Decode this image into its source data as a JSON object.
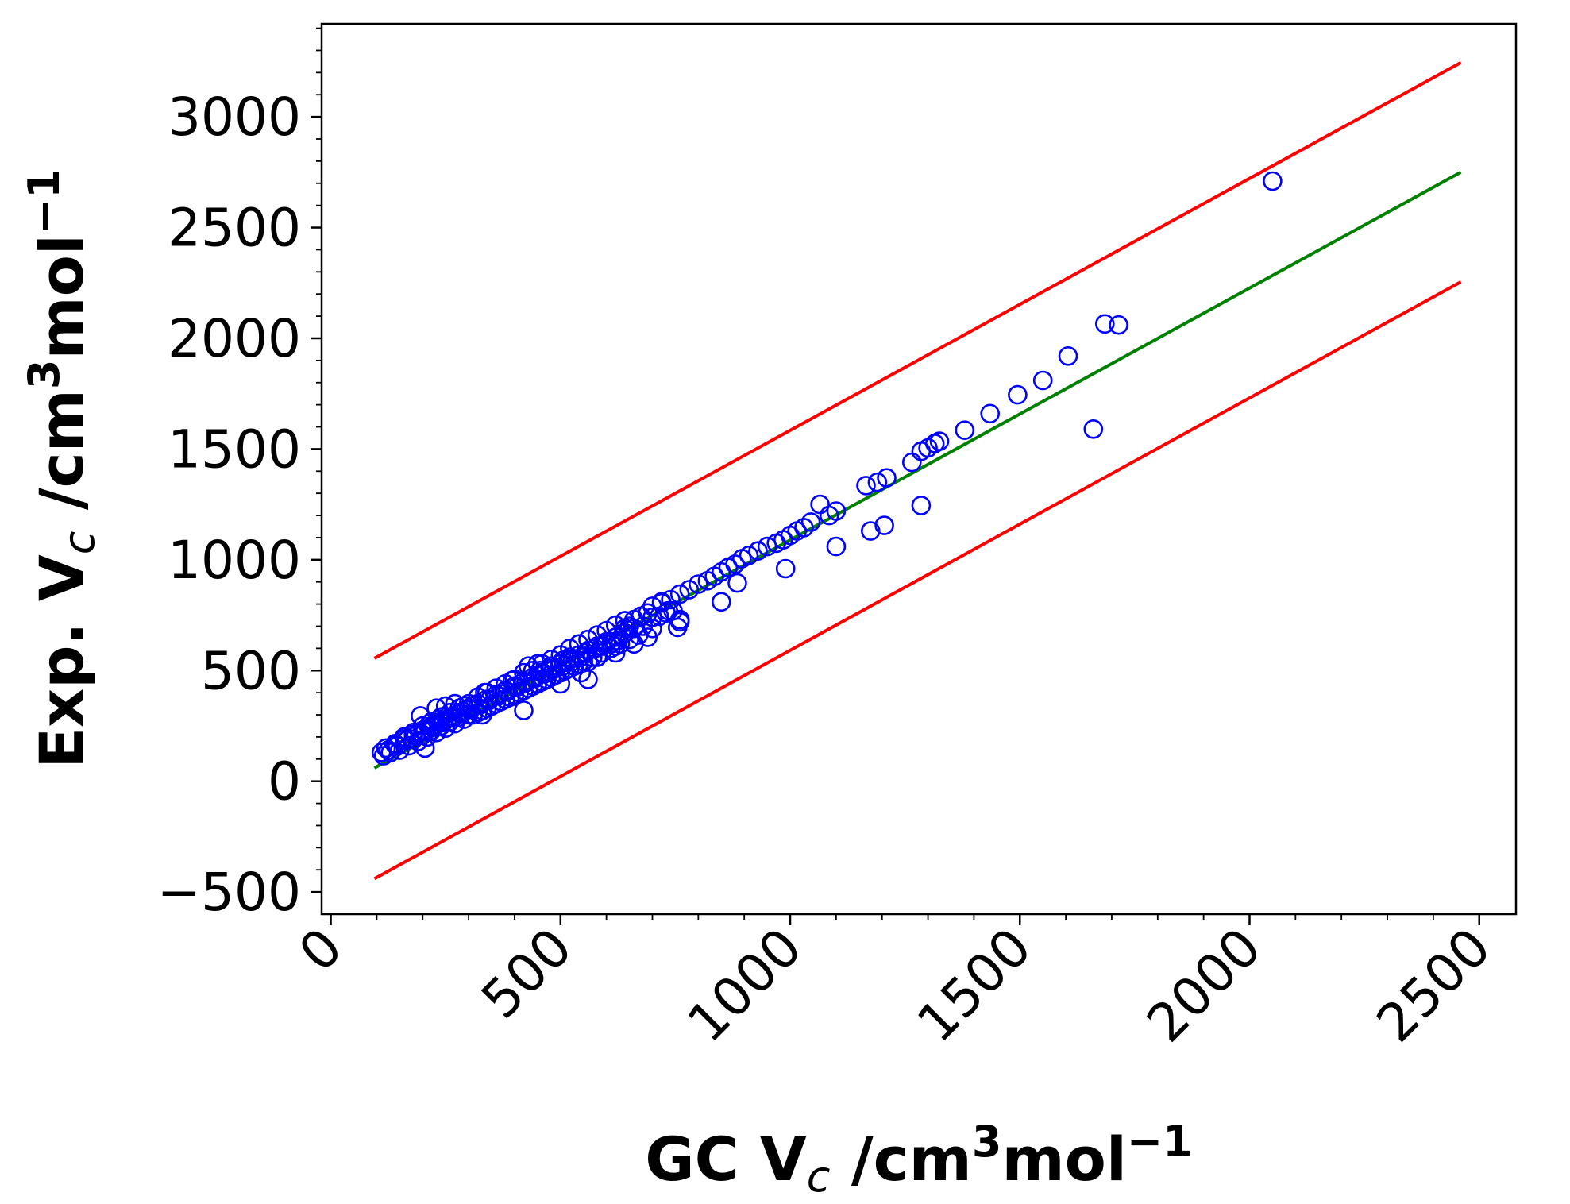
{
  "chart_data": {
    "type": "scatter",
    "xlabel": {
      "main": "GC V",
      "sub": "c",
      "unit_prefix": " /cm",
      "unit_sup": "3",
      "unit_mid": "mol",
      "unit_sup2": "−1"
    },
    "ylabel": {
      "main": "Exp. V",
      "sub": "c",
      "unit_prefix": " /cm",
      "unit_sup": "3",
      "unit_mid": "mol",
      "unit_sup2": "−1"
    },
    "xlim": [
      -20,
      2580
    ],
    "ylim": [
      -600,
      3420
    ],
    "x_ticks": [
      0,
      500,
      1000,
      1500,
      2000,
      2500
    ],
    "x_tick_labels": [
      "0",
      "500",
      "1000",
      "1500",
      "2000",
      "2500"
    ],
    "y_ticks": [
      -500,
      0,
      500,
      1000,
      1500,
      2000,
      2500,
      3000
    ],
    "y_tick_labels": [
      "−500",
      "0",
      "500",
      "1000",
      "1500",
      "2000",
      "2500",
      "3000"
    ],
    "grid": false,
    "colors": {
      "points": "#0000ff",
      "fit_line": "#008000",
      "bound_lines": "#ff0000"
    },
    "lines": [
      {
        "role": "upper-bound",
        "color": "#ff0000",
        "x": [
          95,
          2460
        ],
        "y": [
          555,
          3245
        ]
      },
      {
        "role": "fit",
        "color": "#008000",
        "x": [
          95,
          2460
        ],
        "y": [
          60,
          2750
        ]
      },
      {
        "role": "lower-bound",
        "color": "#ff0000",
        "x": [
          95,
          2460
        ],
        "y": [
          -440,
          2255
        ]
      }
    ],
    "points": [
      [
        2050,
        2710
      ],
      [
        1715,
        2060
      ],
      [
        1685,
        2065
      ],
      [
        1660,
        1590
      ],
      [
        1605,
        1920
      ],
      [
        1550,
        1810
      ],
      [
        1495,
        1745
      ],
      [
        1435,
        1660
      ],
      [
        1380,
        1585
      ],
      [
        1325,
        1535
      ],
      [
        1315,
        1525
      ],
      [
        1300,
        1505
      ],
      [
        1285,
        1490
      ],
      [
        1265,
        1440
      ],
      [
        1285,
        1245
      ],
      [
        1210,
        1370
      ],
      [
        1190,
        1350
      ],
      [
        1165,
        1335
      ],
      [
        1205,
        1155
      ],
      [
        1175,
        1130
      ],
      [
        1100,
        1220
      ],
      [
        1085,
        1200
      ],
      [
        1065,
        1250
      ],
      [
        1045,
        1170
      ],
      [
        1030,
        1145
      ],
      [
        1015,
        1130
      ],
      [
        1100,
        1060
      ],
      [
        1000,
        1110
      ],
      [
        985,
        1090
      ],
      [
        970,
        1075
      ],
      [
        950,
        1060
      ],
      [
        990,
        960
      ],
      [
        930,
        1040
      ],
      [
        910,
        1020
      ],
      [
        895,
        1005
      ],
      [
        880,
        980
      ],
      [
        865,
        965
      ],
      [
        885,
        895
      ],
      [
        850,
        945
      ],
      [
        835,
        925
      ],
      [
        820,
        905
      ],
      [
        850,
        810
      ],
      [
        800,
        890
      ],
      [
        780,
        865
      ],
      [
        760,
        845
      ],
      [
        740,
        820
      ],
      [
        720,
        805
      ],
      [
        760,
        720
      ],
      [
        755,
        695
      ],
      [
        745,
        770
      ],
      [
        730,
        760
      ],
      [
        715,
        745
      ],
      [
        700,
        740
      ],
      [
        690,
        760
      ],
      [
        675,
        745
      ],
      [
        660,
        730
      ],
      [
        640,
        725
      ],
      [
        620,
        705
      ],
      [
        600,
        680
      ],
      [
        580,
        660
      ],
      [
        560,
        640
      ],
      [
        540,
        620
      ],
      [
        520,
        600
      ],
      [
        500,
        570
      ],
      [
        480,
        550
      ],
      [
        460,
        530
      ],
      [
        440,
        500
      ],
      [
        420,
        490
      ],
      [
        400,
        460
      ],
      [
        380,
        440
      ],
      [
        360,
        420
      ],
      [
        340,
        400
      ],
      [
        320,
        380
      ],
      [
        300,
        350
      ],
      [
        280,
        330
      ],
      [
        260,
        310
      ],
      [
        240,
        290
      ],
      [
        220,
        270
      ],
      [
        200,
        250
      ],
      [
        180,
        220
      ],
      [
        160,
        200
      ],
      [
        140,
        170
      ],
      [
        120,
        150
      ],
      [
        110,
        130
      ],
      [
        690,
        650
      ],
      [
        670,
        660
      ],
      [
        650,
        640
      ],
      [
        630,
        620
      ],
      [
        610,
        600
      ],
      [
        590,
        580
      ],
      [
        570,
        560
      ],
      [
        550,
        540
      ],
      [
        530,
        520
      ],
      [
        510,
        500
      ],
      [
        490,
        480
      ],
      [
        470,
        460
      ],
      [
        450,
        440
      ],
      [
        430,
        420
      ],
      [
        410,
        400
      ],
      [
        390,
        380
      ],
      [
        370,
        360
      ],
      [
        350,
        340
      ],
      [
        330,
        320
      ],
      [
        310,
        300
      ],
      [
        290,
        280
      ],
      [
        270,
        260
      ],
      [
        250,
        240
      ],
      [
        230,
        220
      ],
      [
        210,
        200
      ],
      [
        190,
        180
      ],
      [
        170,
        160
      ],
      [
        150,
        140
      ],
      [
        130,
        130
      ],
      [
        115,
        115
      ],
      [
        700,
        690
      ],
      [
        680,
        700
      ],
      [
        660,
        690
      ],
      [
        640,
        670
      ],
      [
        620,
        650
      ],
      [
        600,
        630
      ],
      [
        580,
        610
      ],
      [
        560,
        590
      ],
      [
        540,
        570
      ],
      [
        520,
        550
      ],
      [
        500,
        530
      ],
      [
        480,
        510
      ],
      [
        460,
        490
      ],
      [
        440,
        470
      ],
      [
        420,
        450
      ],
      [
        400,
        430
      ],
      [
        380,
        410
      ],
      [
        360,
        390
      ],
      [
        340,
        370
      ],
      [
        320,
        350
      ],
      [
        300,
        330
      ],
      [
        280,
        310
      ],
      [
        260,
        290
      ],
      [
        240,
        270
      ],
      [
        220,
        250
      ],
      [
        200,
        230
      ],
      [
        180,
        210
      ],
      [
        160,
        190
      ],
      [
        140,
        165
      ],
      [
        660,
        620
      ],
      [
        620,
        610
      ],
      [
        600,
        620
      ],
      [
        575,
        600
      ],
      [
        555,
        580
      ],
      [
        545,
        560
      ],
      [
        525,
        540
      ],
      [
        505,
        520
      ],
      [
        485,
        505
      ],
      [
        465,
        485
      ],
      [
        445,
        465
      ],
      [
        425,
        445
      ],
      [
        405,
        425
      ],
      [
        385,
        405
      ],
      [
        365,
        385
      ],
      [
        345,
        365
      ],
      [
        325,
        345
      ],
      [
        305,
        325
      ],
      [
        285,
        305
      ],
      [
        265,
        285
      ],
      [
        245,
        265
      ],
      [
        225,
        245
      ],
      [
        205,
        225
      ],
      [
        185,
        205
      ],
      [
        165,
        185
      ],
      [
        145,
        160
      ],
      [
        125,
        140
      ],
      [
        620,
        580
      ],
      [
        580,
        560
      ],
      [
        560,
        540
      ],
      [
        540,
        530
      ],
      [
        520,
        510
      ],
      [
        500,
        490
      ],
      [
        480,
        470
      ],
      [
        460,
        450
      ],
      [
        440,
        430
      ],
      [
        420,
        410
      ],
      [
        400,
        390
      ],
      [
        380,
        370
      ],
      [
        360,
        350
      ],
      [
        340,
        330
      ],
      [
        320,
        310
      ],
      [
        300,
        300
      ],
      [
        280,
        290
      ],
      [
        260,
        270
      ],
      [
        240,
        250
      ],
      [
        220,
        230
      ],
      [
        200,
        210
      ],
      [
        180,
        190
      ],
      [
        450,
        530
      ],
      [
        420,
        320
      ],
      [
        500,
        440
      ],
      [
        560,
        460
      ],
      [
        230,
        330
      ],
      [
        195,
        295
      ],
      [
        330,
        300
      ],
      [
        270,
        350
      ],
      [
        250,
        340
      ],
      [
        430,
        520
      ],
      [
        480,
        520
      ],
      [
        520,
        560
      ],
      [
        760,
        730
      ],
      [
        640,
        690
      ],
      [
        560,
        590
      ],
      [
        505,
        545
      ],
      [
        455,
        500
      ],
      [
        395,
        455
      ],
      [
        335,
        400
      ],
      [
        290,
        340
      ],
      [
        235,
        280
      ],
      [
        205,
        150
      ],
      [
        215,
        260
      ],
      [
        545,
        490
      ],
      [
        590,
        610
      ],
      [
        610,
        620
      ],
      [
        625,
        635
      ],
      [
        650,
        700
      ],
      [
        640,
        725
      ],
      [
        700,
        790
      ],
      [
        720,
        810
      ],
      [
        735,
        770
      ]
    ]
  }
}
